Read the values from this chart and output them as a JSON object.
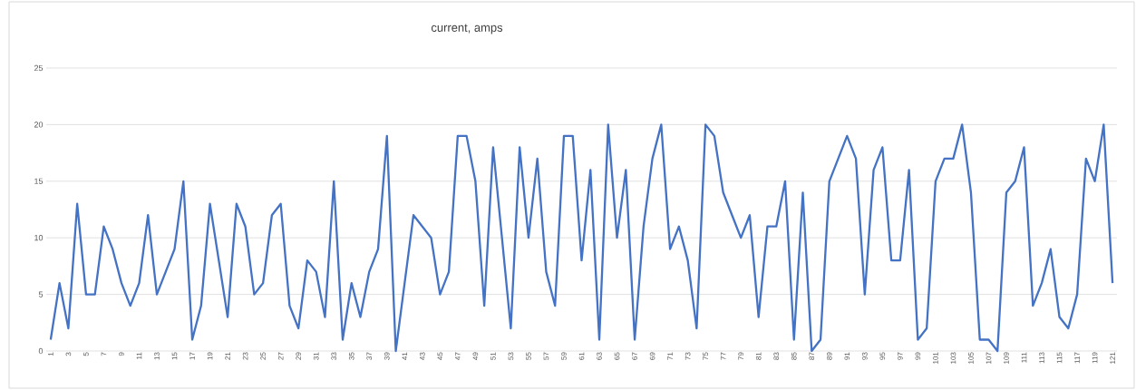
{
  "chart_data": {
    "type": "line",
    "title": "current, amps",
    "categories": [
      "1",
      null,
      "3",
      null,
      "5",
      null,
      "7",
      null,
      "9",
      null,
      "11",
      null,
      "13",
      null,
      "15",
      null,
      "17",
      null,
      "19",
      null,
      "21",
      null,
      "23",
      null,
      "25",
      null,
      "27",
      null,
      "29",
      null,
      "31",
      null,
      "33",
      null,
      "35",
      null,
      "37",
      null,
      "39",
      null,
      "41",
      null,
      "43",
      null,
      "45",
      null,
      "47",
      null,
      "49",
      null,
      "51",
      null,
      "53",
      null,
      "55",
      null,
      "57",
      null,
      "59",
      null,
      "61",
      null,
      "63",
      null,
      "65",
      null,
      "67",
      null,
      "69",
      null,
      "71",
      null,
      "73",
      null,
      "75",
      null,
      "77",
      null,
      "79",
      null,
      "81",
      null,
      "83",
      null,
      "85",
      null,
      "87",
      null,
      "89",
      null,
      "91",
      null,
      "93",
      null,
      "95",
      null,
      "97",
      null,
      "99",
      null,
      "101",
      null,
      "103",
      null,
      "105",
      null,
      "107",
      null,
      "109",
      null,
      "111",
      null,
      "113",
      null,
      "115",
      null,
      "117",
      null,
      "119",
      null,
      "121"
    ],
    "values": [
      1,
      6,
      2,
      13,
      5,
      5,
      11,
      9,
      6,
      4,
      6,
      12,
      5,
      7,
      9,
      15,
      1,
      4,
      13,
      8,
      3,
      13,
      11,
      5,
      6,
      12,
      13,
      4,
      2,
      8,
      7,
      3,
      15,
      1,
      6,
      3,
      7,
      9,
      19,
      0,
      6,
      12,
      11,
      10,
      5,
      7,
      19,
      19,
      15,
      4,
      18,
      10,
      2,
      18,
      10,
      17,
      7,
      4,
      19,
      19,
      8,
      16,
      1,
      20,
      10,
      16,
      1,
      11,
      17,
      20,
      9,
      11,
      8,
      2,
      20,
      19,
      14,
      12,
      10,
      12,
      3,
      11,
      11,
      15,
      1,
      14,
      0,
      1,
      15,
      17,
      19,
      17,
      5,
      16,
      18,
      8,
      8,
      16,
      1,
      2,
      15,
      17,
      17,
      20,
      14,
      1,
      1,
      0,
      14,
      15,
      18,
      4,
      6,
      9,
      3,
      2,
      5,
      17,
      15,
      20,
      6
    ],
    "color": "#4472c4",
    "ylim": [
      0,
      25
    ],
    "yticks": [
      0,
      5,
      10,
      15,
      20,
      25
    ],
    "grid": "y"
  }
}
